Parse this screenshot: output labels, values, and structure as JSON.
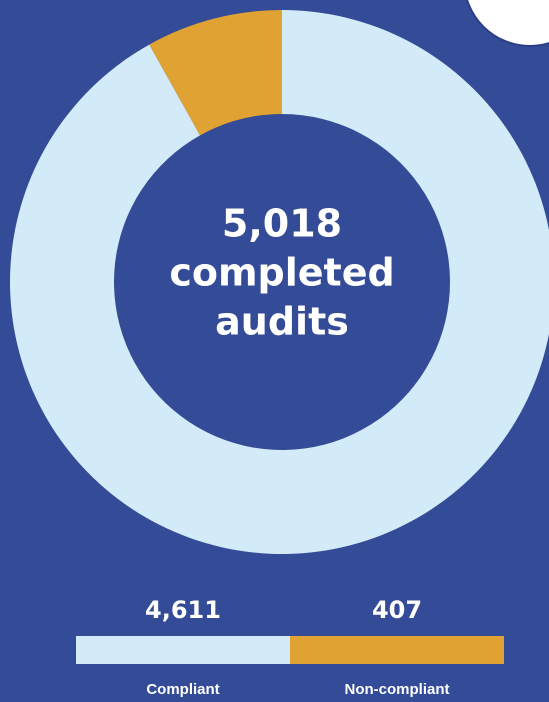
{
  "chart_data": {
    "type": "donut",
    "categories": [
      "Compliant",
      "Non-compliant"
    ],
    "values": [
      4611,
      407
    ],
    "value_labels": [
      "4,611",
      "407"
    ],
    "colors": [
      "#d3eaf8",
      "#e0a333"
    ],
    "center_text": {
      "value": 5018,
      "label": "5,018"
    },
    "center_caption": [
      "completed",
      "audits"
    ]
  }
}
